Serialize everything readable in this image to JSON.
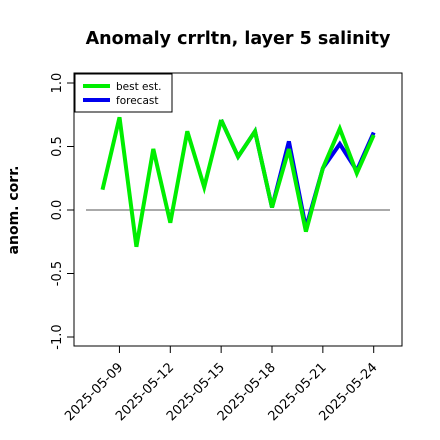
{
  "chart_data": {
    "type": "line",
    "title": "Anomaly crrltn, layer 5 salinity",
    "xlabel": "",
    "ylabel": "anom. corr.",
    "ylim": [
      -1.0,
      1.0
    ],
    "yticks": [
      -1.0,
      -0.5,
      0.0,
      0.5,
      1.0
    ],
    "ytick_labels": [
      "-1.0",
      "-0.5",
      "0.0",
      "0.5",
      "1.0"
    ],
    "x": [
      "2025-05-08",
      "2025-05-09",
      "2025-05-10",
      "2025-05-11",
      "2025-05-12",
      "2025-05-13",
      "2025-05-14",
      "2025-05-15",
      "2025-05-16",
      "2025-05-17",
      "2025-05-18",
      "2025-05-19",
      "2025-05-20",
      "2025-05-21",
      "2025-05-22",
      "2025-05-23",
      "2025-05-24"
    ],
    "xticks": [
      "2025-05-09",
      "2025-05-12",
      "2025-05-15",
      "2025-05-18",
      "2025-05-21",
      "2025-05-24"
    ],
    "highlight_tick": "2025-05-15",
    "highlight_color": "#228b22",
    "reference_line": 0.0,
    "grid": false,
    "legend_position": "top-left",
    "series": [
      {
        "name": "best est.",
        "color": "#00ee00",
        "values": [
          0.16,
          0.73,
          -0.29,
          0.48,
          -0.1,
          0.62,
          0.18,
          0.71,
          null,
          null,
          null,
          null,
          null,
          null,
          null,
          null,
          null
        ]
      },
      {
        "name": "forecast",
        "color": "#0000ee",
        "values": [
          null,
          null,
          null,
          null,
          null,
          null,
          null,
          0.71,
          0.42,
          0.62,
          0.02,
          0.54,
          -0.14,
          0.33,
          0.52,
          0.31,
          0.61
        ]
      },
      {
        "name": "",
        "color": "#00ee00",
        "values": [
          null,
          null,
          null,
          null,
          null,
          null,
          null,
          0.71,
          0.42,
          0.62,
          0.02,
          0.48,
          -0.17,
          0.33,
          0.64,
          0.29,
          0.59
        ]
      }
    ]
  }
}
